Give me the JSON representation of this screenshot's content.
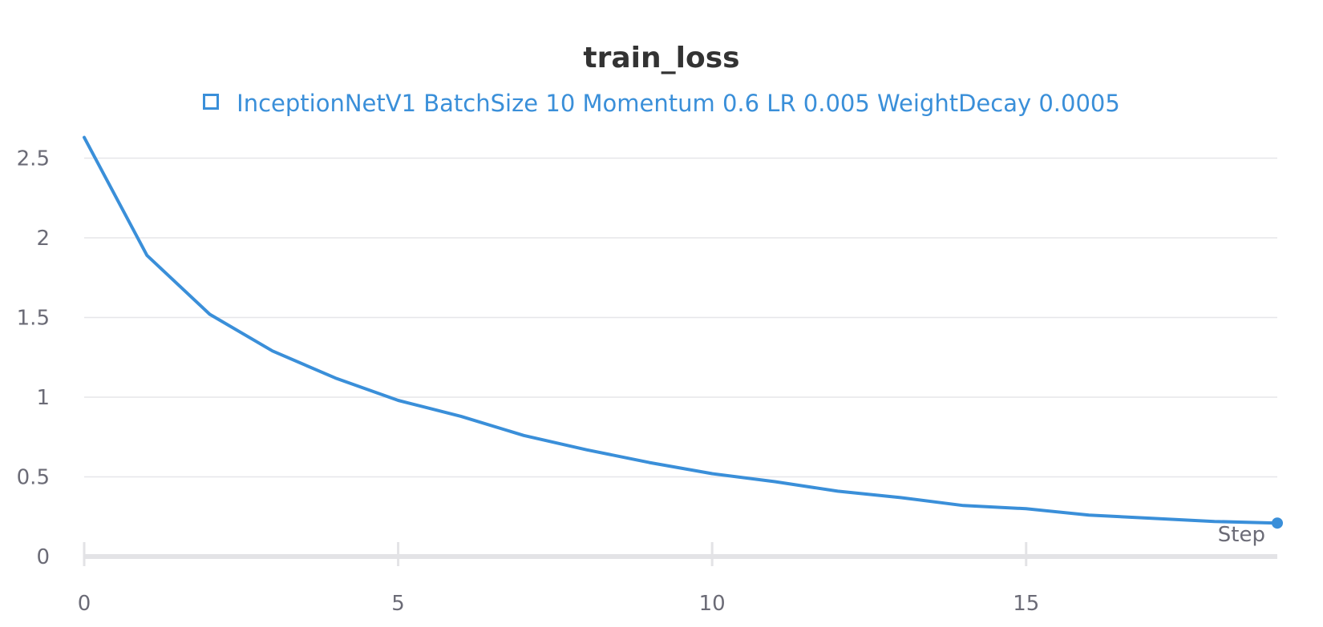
{
  "chart_data": {
    "type": "line",
    "title": "train_loss",
    "xlabel": "Step",
    "ylabel": "",
    "xlim": [
      0,
      19
    ],
    "ylim": [
      0,
      2.6
    ],
    "xticks": [
      0,
      5,
      10,
      15
    ],
    "yticks": [
      0,
      0.5,
      1,
      1.5,
      2,
      2.5
    ],
    "grid": "horizontal",
    "legend_position": "top-center",
    "series": [
      {
        "name": "InceptionNetV1 BatchSize 10 Momentum 0.6 LR 0.005 WeightDecay 0.0005",
        "color": "#3a8fd9",
        "x": [
          0,
          1,
          2,
          3,
          4,
          5,
          6,
          7,
          8,
          9,
          10,
          11,
          12,
          13,
          14,
          15,
          16,
          17,
          18,
          19
        ],
        "y": [
          2.63,
          1.89,
          1.52,
          1.29,
          1.12,
          0.98,
          0.88,
          0.76,
          0.67,
          0.59,
          0.52,
          0.47,
          0.41,
          0.37,
          0.32,
          0.3,
          0.26,
          0.24,
          0.22,
          0.21
        ]
      }
    ]
  }
}
